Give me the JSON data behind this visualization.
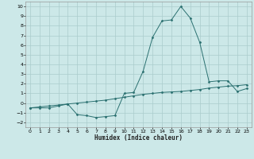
{
  "title": "",
  "xlabel": "Humidex (Indice chaleur)",
  "ylabel": "",
  "background_color": "#cce8e8",
  "grid_color": "#aacccc",
  "line_color": "#2a7070",
  "xlim": [
    -0.5,
    23.5
  ],
  "ylim": [
    -2.5,
    10.5
  ],
  "xticks": [
    0,
    1,
    2,
    3,
    4,
    5,
    6,
    7,
    8,
    9,
    10,
    11,
    12,
    13,
    14,
    15,
    16,
    17,
    18,
    19,
    20,
    21,
    22,
    23
  ],
  "yticks": [
    -2,
    -1,
    0,
    1,
    2,
    3,
    4,
    5,
    6,
    7,
    8,
    9,
    10
  ],
  "curve1_x": [
    0,
    1,
    2,
    3,
    4,
    5,
    6,
    7,
    8,
    9,
    10,
    11,
    12,
    13,
    14,
    15,
    16,
    17,
    18,
    19,
    20,
    21,
    22,
    23
  ],
  "curve1_y": [
    -0.5,
    -0.5,
    -0.5,
    -0.3,
    -0.1,
    -1.2,
    -1.3,
    -1.5,
    -1.4,
    -1.3,
    1.0,
    1.1,
    3.3,
    6.8,
    8.5,
    8.6,
    10.0,
    8.8,
    6.3,
    2.2,
    2.3,
    2.3,
    1.2,
    1.5
  ],
  "curve2_x": [
    0,
    1,
    2,
    3,
    4,
    5,
    6,
    7,
    8,
    9,
    10,
    11,
    12,
    13,
    14,
    15,
    16,
    17,
    18,
    19,
    20,
    21,
    22,
    23
  ],
  "curve2_y": [
    -0.5,
    -0.4,
    -0.3,
    -0.2,
    -0.1,
    0.0,
    0.1,
    0.2,
    0.3,
    0.45,
    0.6,
    0.75,
    0.9,
    1.0,
    1.1,
    1.15,
    1.2,
    1.3,
    1.4,
    1.55,
    1.65,
    1.75,
    1.8,
    1.9
  ]
}
